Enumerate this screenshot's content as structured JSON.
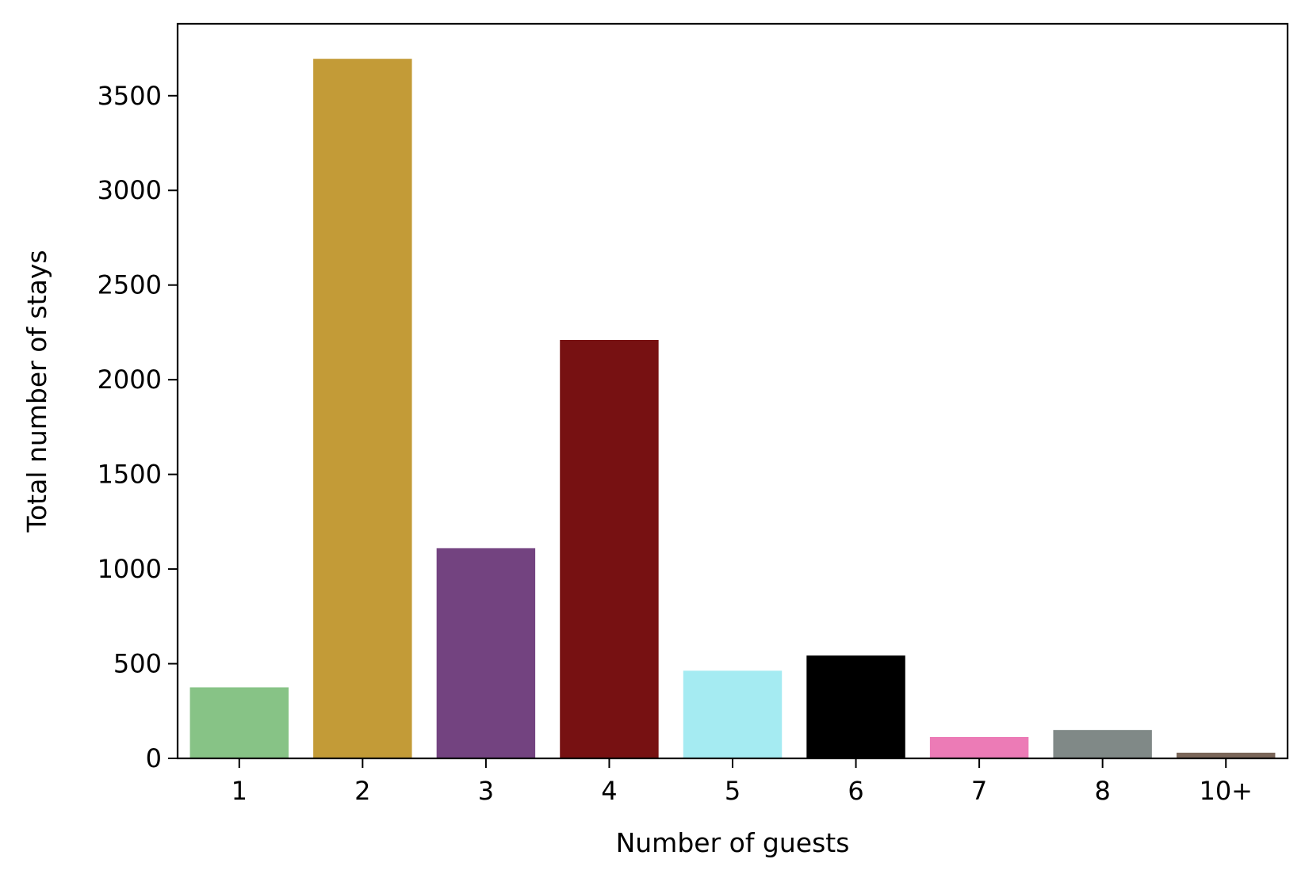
{
  "chart_data": {
    "type": "bar",
    "title": "",
    "xlabel": "Number of guests",
    "ylabel": "Total number of stays",
    "categories": [
      "1",
      "2",
      "3",
      "4",
      "5",
      "6",
      "7",
      "8",
      "10+"
    ],
    "values": [
      375,
      3695,
      1110,
      2210,
      463,
      543,
      113,
      150,
      30
    ],
    "colors": [
      "#87c386",
      "#c39b37",
      "#734380",
      "#771112",
      "#a5ebf2",
      "#000000",
      "#ec7bb6",
      "#808987",
      "#7a6659"
    ],
    "ylim": [
      0,
      3880
    ],
    "yticks": [
      0,
      500,
      1000,
      1500,
      2000,
      2500,
      3000,
      3500
    ],
    "ytick_labels": [
      "0",
      "500",
      "1000",
      "1500",
      "2000",
      "2500",
      "3000",
      "3500"
    ],
    "grid": false,
    "legend": "none"
  }
}
